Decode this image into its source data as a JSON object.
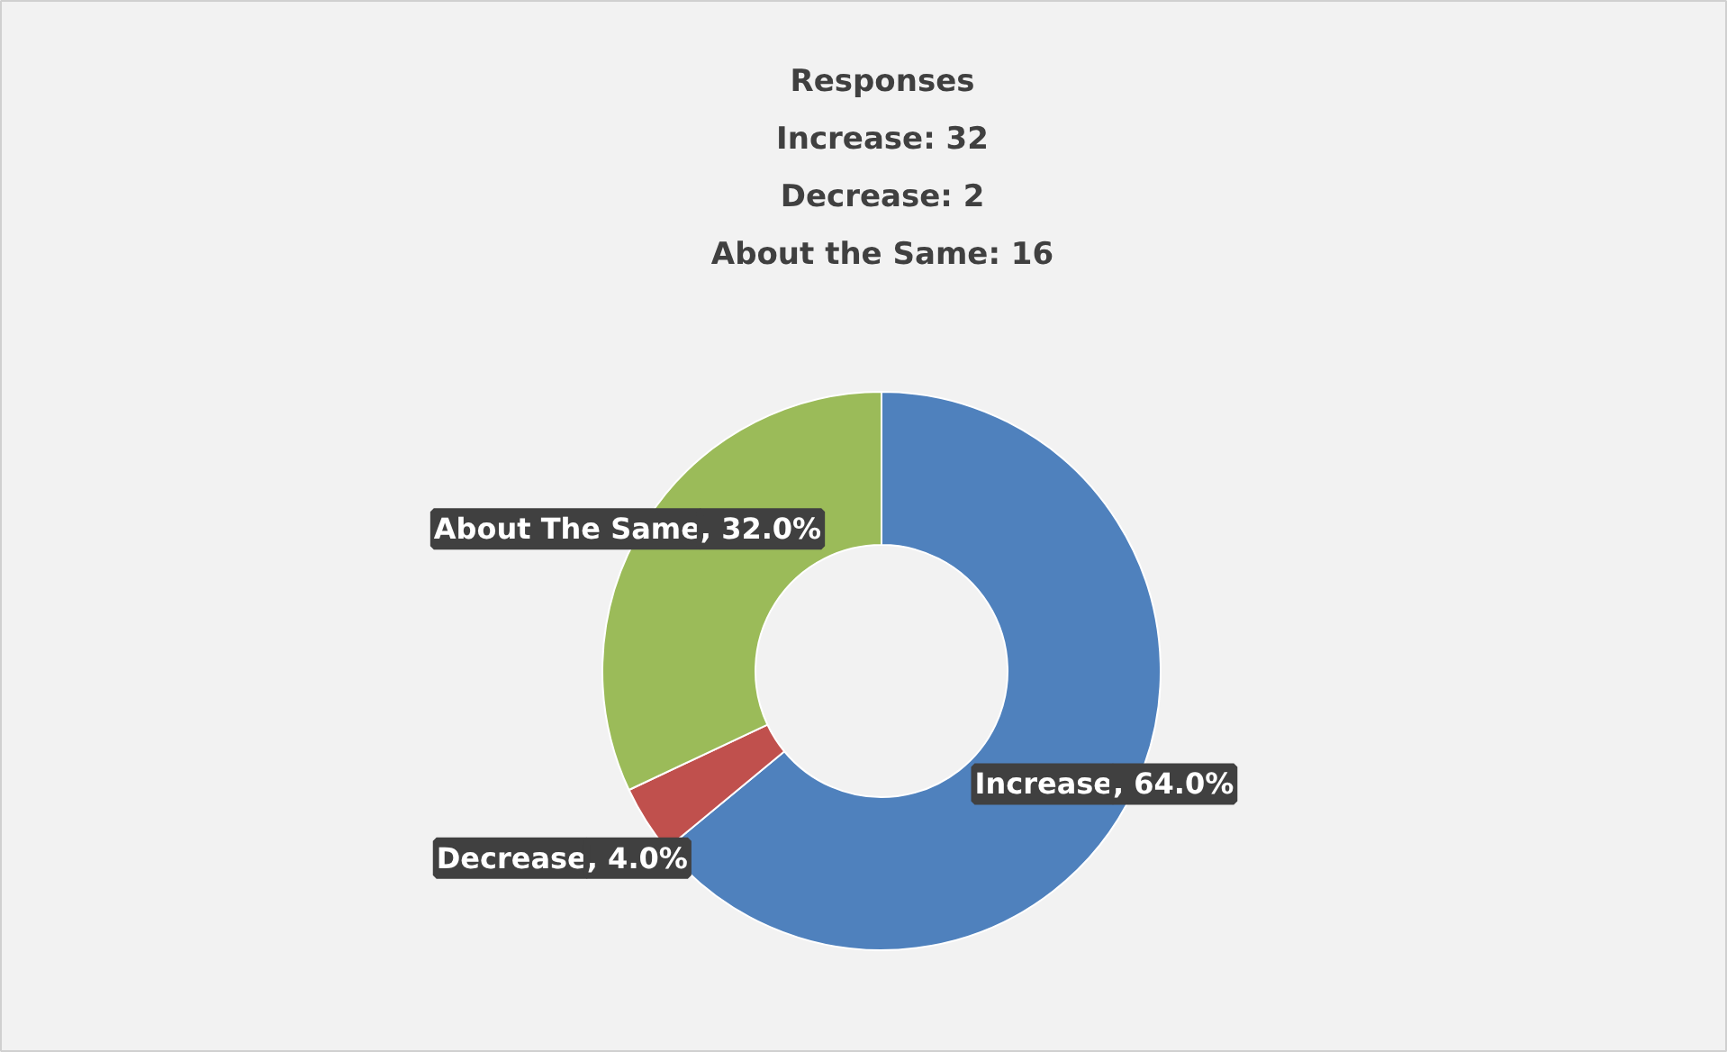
{
  "chart_data": {
    "type": "donut",
    "title": "Responses",
    "annotations": [
      "Increase: 32",
      "Decrease: 2",
      "About the Same: 16"
    ],
    "categories": [
      "Increase",
      "Decrease",
      "About The Same"
    ],
    "values": [
      64.0,
      4.0,
      32.0
    ],
    "colors": [
      "#4f81bd",
      "#c0504d",
      "#9bbb59"
    ],
    "value_labels": [
      ", 64.0%",
      ", 4.0%",
      ", 32.0%"
    ],
    "legend": false
  }
}
